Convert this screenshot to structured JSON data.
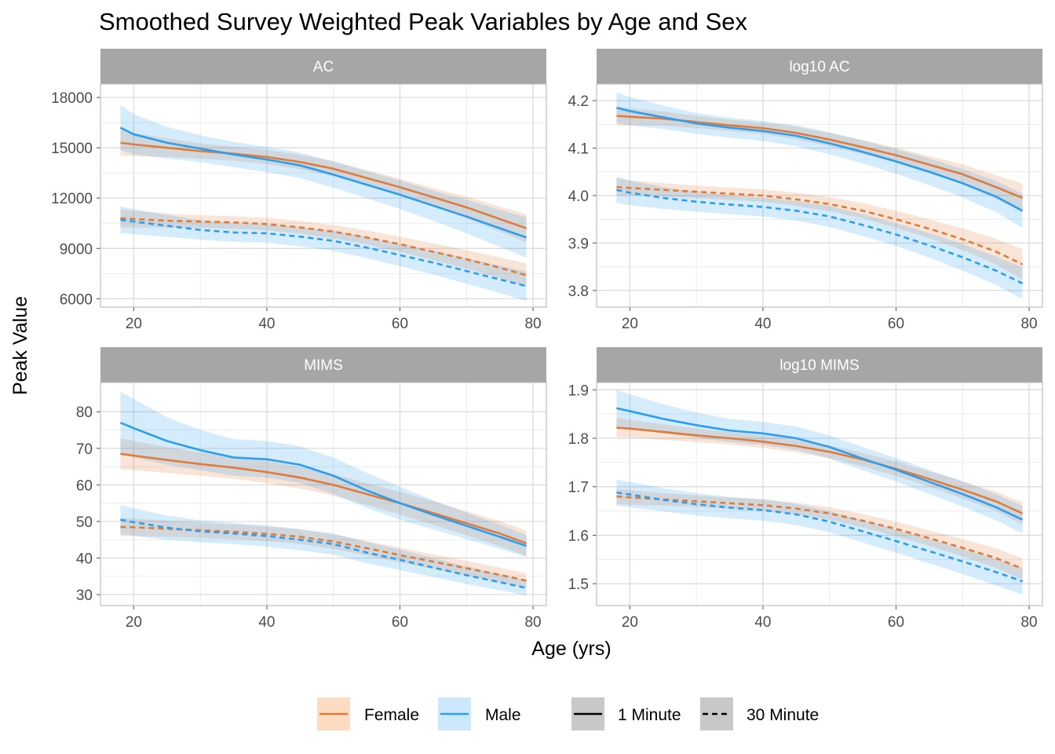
{
  "chart_data": {
    "type": "line",
    "title": "Smoothed Survey Weighted Peak Variables by Age and Sex",
    "xlabel": "Age (yrs)",
    "ylabel": "Peak Value",
    "xlim": [
      15,
      82
    ],
    "x_ticks": [
      20,
      40,
      60,
      80
    ],
    "x": [
      18,
      20,
      25,
      30,
      35,
      40,
      45,
      50,
      55,
      60,
      65,
      70,
      75,
      79
    ],
    "colors": {
      "Female": "#e07b39",
      "Male": "#2b9ef0",
      "Female_band": "#ffdbc2",
      "Male_band": "#cce8ff",
      "overlap": "#c8c8c8",
      "strip": "#a6a6a6"
    },
    "legend": {
      "sex": [
        {
          "label": "Female",
          "color": "#e07b39",
          "band": "#ffdbc2"
        },
        {
          "label": "Male",
          "color": "#2b9ef0",
          "band": "#cce8ff"
        }
      ],
      "window": [
        {
          "label": "1 Minute",
          "dash": "solid"
        },
        {
          "label": "30 Minute",
          "dash": "dashed"
        }
      ]
    },
    "panels": [
      {
        "label": "AC",
        "ylim": [
          5500,
          18800
        ],
        "y_ticks": [
          6000,
          9000,
          12000,
          15000,
          18000
        ],
        "y_tick_labels": [
          "6000",
          "9000",
          "12000",
          "15000",
          "18000"
        ],
        "series": [
          {
            "sex": "Female",
            "window": "1 Minute",
            "values": [
              15300,
              15200,
              15000,
              14800,
              14650,
              14450,
              14150,
              13750,
              13200,
              12650,
              12050,
              11450,
              10750,
              10200
            ],
            "half_band": [
              800,
              700,
              550,
              450,
              420,
              420,
              430,
              450,
              470,
              500,
              550,
              650,
              750,
              850
            ]
          },
          {
            "sex": "Male",
            "window": "1 Minute",
            "values": [
              16200,
              15800,
              15300,
              14950,
              14600,
              14300,
              13950,
              13400,
              12800,
              12200,
              11550,
              10900,
              10200,
              9650
            ],
            "half_band": [
              1350,
              1200,
              950,
              800,
              750,
              750,
              760,
              780,
              800,
              850,
              900,
              1000,
              1100,
              1200
            ]
          },
          {
            "sex": "Female",
            "window": "30 Minute",
            "values": [
              10800,
              10750,
              10650,
              10600,
              10550,
              10450,
              10250,
              10000,
              9650,
              9250,
              8800,
              8350,
              7850,
              7400
            ],
            "half_band": [
              550,
              500,
              420,
              380,
              370,
              370,
              380,
              400,
              420,
              450,
              500,
              550,
              620,
              700
            ]
          },
          {
            "sex": "Male",
            "window": "30 Minute",
            "values": [
              10700,
              10600,
              10350,
              10100,
              9950,
              9900,
              9700,
              9450,
              9050,
              8600,
              8150,
              7650,
              7150,
              6750
            ],
            "half_band": [
              800,
              750,
              650,
              580,
              560,
              560,
              570,
              600,
              630,
              660,
              700,
              760,
              820,
              880
            ]
          }
        ]
      },
      {
        "label": "log10 AC",
        "ylim": [
          3.765,
          4.235
        ],
        "y_ticks": [
          3.8,
          3.9,
          4.0,
          4.1,
          4.2
        ],
        "y_tick_labels": [
          "3.8",
          "3.9",
          "4.0",
          "4.1",
          "4.2"
        ],
        "series": [
          {
            "sex": "Female",
            "window": "1 Minute",
            "values": [
              4.168,
              4.166,
              4.162,
              4.155,
              4.148,
              4.142,
              4.132,
              4.118,
              4.102,
              4.085,
              4.065,
              4.045,
              4.018,
              3.995
            ],
            "half_band": [
              0.02,
              0.018,
              0.015,
              0.013,
              0.012,
              0.012,
              0.013,
              0.014,
              0.015,
              0.016,
              0.018,
              0.021,
              0.025,
              0.03
            ]
          },
          {
            "sex": "Male",
            "window": "1 Minute",
            "values": [
              4.185,
              4.178,
              4.165,
              4.152,
              4.143,
              4.136,
              4.126,
              4.11,
              4.092,
              4.072,
              4.05,
              4.026,
              3.998,
              3.968
            ],
            "half_band": [
              0.032,
              0.03,
              0.025,
              0.022,
              0.021,
              0.021,
              0.022,
              0.023,
              0.024,
              0.026,
              0.028,
              0.03,
              0.033,
              0.036
            ]
          },
          {
            "sex": "Female",
            "window": "30 Minute",
            "values": [
              4.018,
              4.016,
              4.012,
              4.008,
              4.004,
              4.0,
              3.992,
              3.982,
              3.968,
              3.95,
              3.93,
              3.908,
              3.882,
              3.855
            ],
            "half_band": [
              0.018,
              0.016,
              0.014,
              0.013,
              0.013,
              0.013,
              0.014,
              0.015,
              0.016,
              0.018,
              0.02,
              0.023,
              0.027,
              0.032
            ]
          },
          {
            "sex": "Male",
            "window": "30 Minute",
            "values": [
              4.012,
              4.006,
              3.995,
              3.987,
              3.981,
              3.976,
              3.968,
              3.956,
              3.938,
              3.918,
              3.895,
              3.87,
              3.842,
              3.815
            ],
            "half_band": [
              0.028,
              0.026,
              0.023,
              0.021,
              0.02,
              0.02,
              0.021,
              0.022,
              0.023,
              0.024,
              0.026,
              0.028,
              0.03,
              0.033
            ]
          }
        ]
      },
      {
        "label": "MIMS",
        "ylim": [
          27,
          88
        ],
        "y_ticks": [
          30,
          40,
          50,
          60,
          70,
          80
        ],
        "y_tick_labels": [
          "30",
          "40",
          "50",
          "60",
          "70",
          "80"
        ],
        "series": [
          {
            "sex": "Female",
            "window": "1 Minute",
            "values": [
              68.5,
              68.0,
              66.8,
              65.7,
              64.7,
              63.5,
              62.0,
              60.0,
              57.5,
              55.0,
              52.3,
              49.5,
              46.7,
              44.0
            ],
            "half_band": [
              4.2,
              4.0,
              3.5,
              3.2,
              3.0,
              3.0,
              3.0,
              3.0,
              3.0,
              3.1,
              3.2,
              3.3,
              3.4,
              3.5
            ]
          },
          {
            "sex": "Male",
            "window": "1 Minute",
            "values": [
              77.0,
              75.5,
              72.0,
              69.5,
              67.5,
              67.0,
              65.5,
              62.5,
              58.5,
              55.0,
              51.8,
              48.8,
              45.8,
              43.3
            ],
            "half_band": [
              8.5,
              8.0,
              6.5,
              5.5,
              5.0,
              5.0,
              5.0,
              5.0,
              4.8,
              4.5,
              4.0,
              3.6,
              3.3,
              3.0
            ]
          },
          {
            "sex": "Female",
            "window": "30 Minute",
            "values": [
              48.5,
              48.4,
              48.0,
              47.6,
              47.2,
              46.6,
              45.8,
              44.5,
              42.7,
              40.8,
              39.0,
              37.2,
              35.4,
              33.8
            ],
            "half_band": [
              2.5,
              2.4,
              2.2,
              2.1,
              2.0,
              2.0,
              2.0,
              2.0,
              2.0,
              2.0,
              2.0,
              2.0,
              2.0,
              2.0
            ]
          },
          {
            "sex": "Male",
            "window": "30 Minute",
            "values": [
              50.5,
              49.8,
              48.3,
              47.3,
              46.7,
              46.0,
              45.0,
              43.8,
              41.5,
              39.5,
              37.4,
              35.3,
              33.4,
              31.8
            ],
            "half_band": [
              4.0,
              3.8,
              3.3,
              3.0,
              2.9,
              2.9,
              2.9,
              2.9,
              2.9,
              2.8,
              2.6,
              2.4,
              2.2,
              2.0
            ]
          }
        ]
      },
      {
        "label": "log10 MIMS",
        "ylim": [
          1.455,
          1.915
        ],
        "y_ticks": [
          1.5,
          1.6,
          1.7,
          1.8,
          1.9
        ],
        "y_tick_labels": [
          "1.5",
          "1.6",
          "1.7",
          "1.8",
          "1.9"
        ],
        "series": [
          {
            "sex": "Female",
            "window": "1 Minute",
            "values": [
              1.822,
              1.82,
              1.813,
              1.806,
              1.8,
              1.793,
              1.784,
              1.772,
              1.756,
              1.737,
              1.716,
              1.694,
              1.67,
              1.645
            ],
            "half_band": [
              0.02,
              0.018,
              0.016,
              0.014,
              0.013,
              0.013,
              0.013,
              0.013,
              0.014,
              0.015,
              0.016,
              0.018,
              0.02,
              0.023
            ]
          },
          {
            "sex": "Male",
            "window": "1 Minute",
            "values": [
              1.862,
              1.856,
              1.84,
              1.827,
              1.816,
              1.81,
              1.8,
              1.782,
              1.758,
              1.735,
              1.71,
              1.685,
              1.658,
              1.632
            ],
            "half_band": [
              0.038,
              0.035,
              0.03,
              0.026,
              0.024,
              0.024,
              0.024,
              0.024,
              0.024,
              0.024,
              0.025,
              0.026,
              0.027,
              0.028
            ]
          },
          {
            "sex": "Female",
            "window": "30 Minute",
            "values": [
              1.68,
              1.678,
              1.674,
              1.67,
              1.666,
              1.662,
              1.655,
              1.645,
              1.63,
              1.613,
              1.594,
              1.574,
              1.553,
              1.531
            ],
            "half_band": [
              0.016,
              0.015,
              0.013,
              0.012,
              0.012,
              0.012,
              0.012,
              0.013,
              0.014,
              0.015,
              0.016,
              0.018,
              0.02,
              0.022
            ]
          },
          {
            "sex": "Male",
            "window": "30 Minute",
            "values": [
              1.688,
              1.684,
              1.673,
              1.664,
              1.657,
              1.652,
              1.643,
              1.628,
              1.608,
              1.588,
              1.567,
              1.546,
              1.524,
              1.505
            ],
            "half_band": [
              0.027,
              0.026,
              0.024,
              0.023,
              0.022,
              0.022,
              0.022,
              0.022,
              0.023,
              0.024,
              0.025,
              0.026,
              0.027,
              0.028
            ]
          }
        ]
      }
    ]
  }
}
